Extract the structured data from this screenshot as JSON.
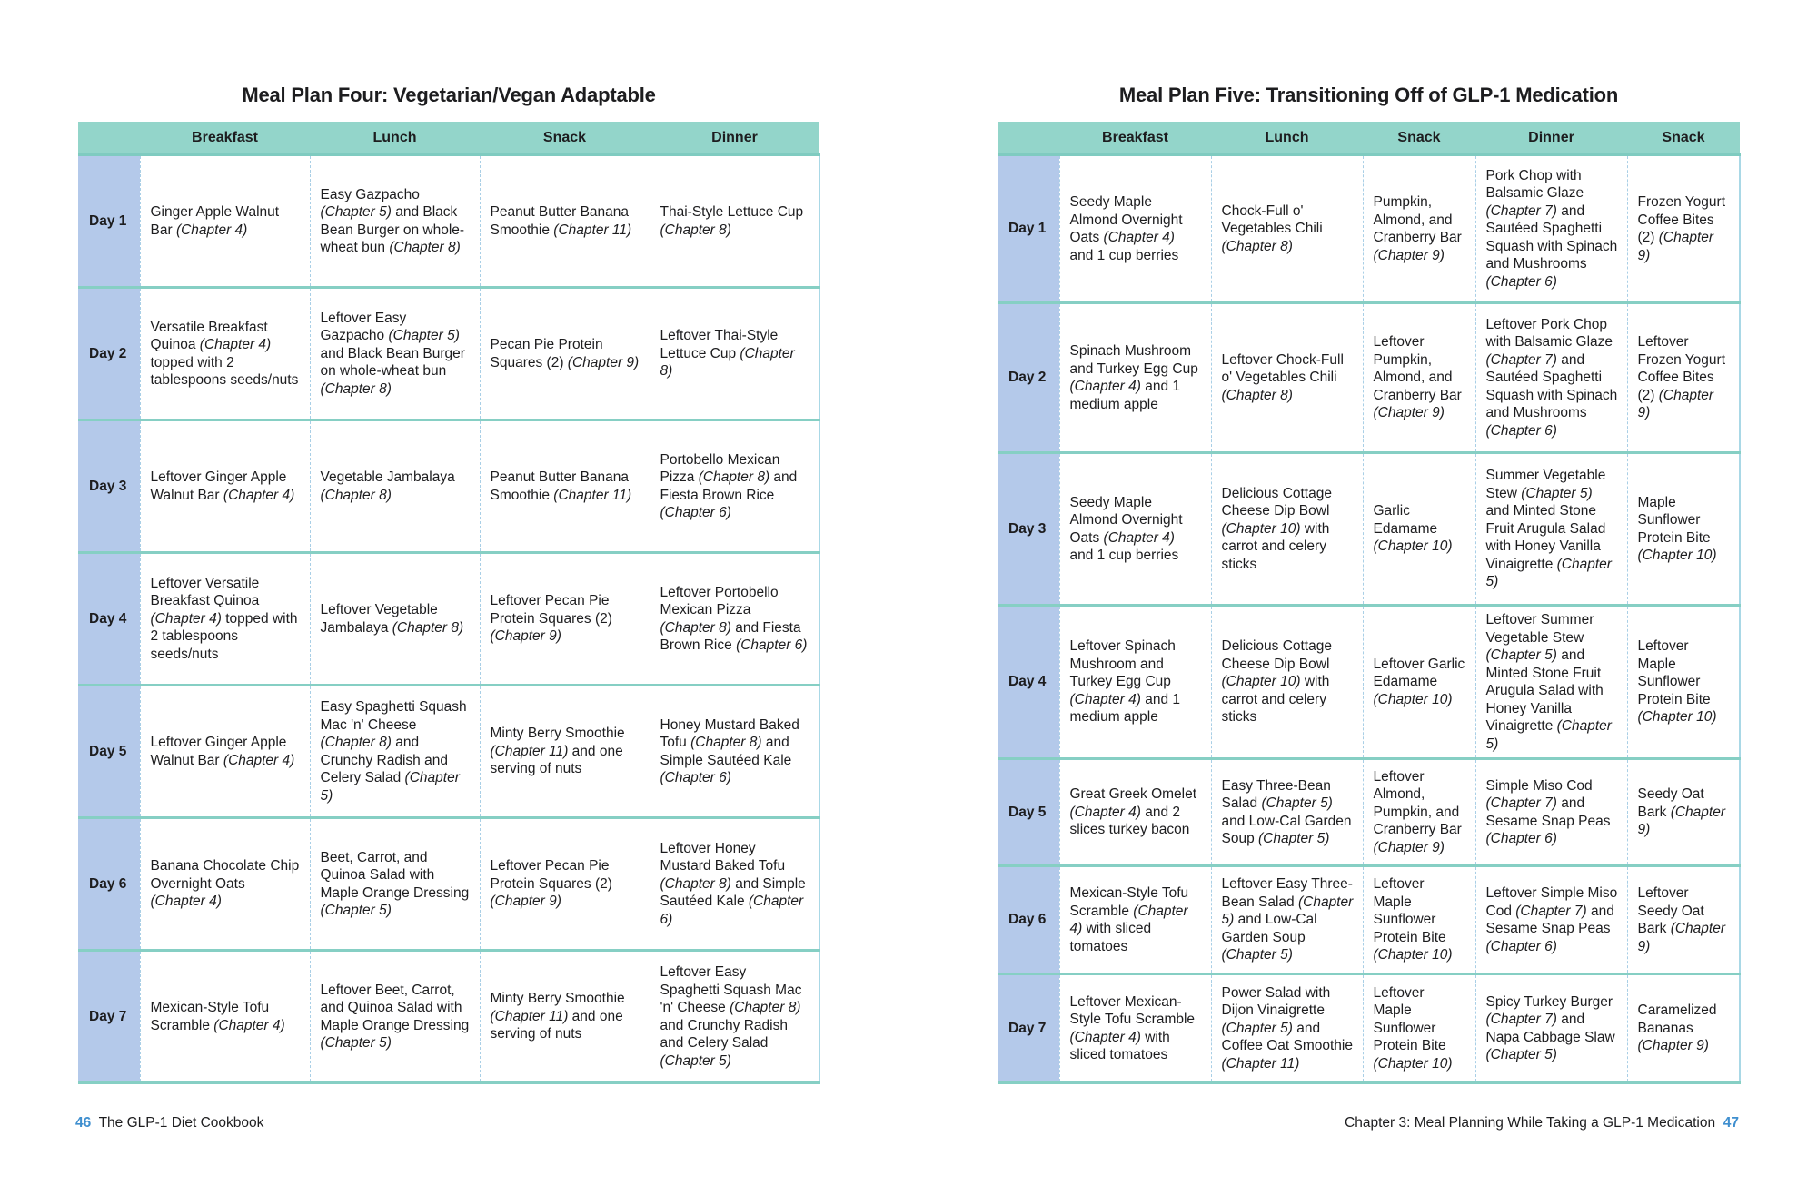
{
  "left": {
    "title": "Meal Plan Four: Vegetarian/Vegan Adaptable",
    "headers": [
      "",
      "Breakfast",
      "Lunch",
      "Snack",
      "Dinner"
    ],
    "rows": [
      {
        "day": "Day 1",
        "cells": [
          "Ginger Apple Walnut Bar (Chapter 4)",
          "Easy Gazpacho (Chapter 5) and Black Bean Burger on whole-wheat bun (Chapter 8)",
          "Peanut Butter Banana Smoothie (Chapter 11)",
          "Thai-Style Lettuce Cup (Chapter 8)"
        ]
      },
      {
        "day": "Day 2",
        "cells": [
          "Versatile Breakfast Quinoa (Chapter 4) topped with 2 tablespoons seeds/nuts",
          "Leftover Easy Gazpacho (Chapter 5) and Black Bean Burger on whole-wheat bun (Chapter 8)",
          "Pecan Pie Protein Squares (2) (Chapter 9)",
          "Leftover Thai-Style Lettuce Cup (Chapter 8)"
        ]
      },
      {
        "day": "Day 3",
        "cells": [
          "Leftover Ginger Apple Walnut Bar (Chapter 4)",
          "Vegetable Jambalaya (Chapter 8)",
          "Peanut Butter Banana Smoothie (Chapter 11)",
          "Portobello Mexican Pizza (Chapter 8) and Fiesta Brown Rice (Chapter 6)"
        ]
      },
      {
        "day": "Day 4",
        "cells": [
          "Leftover Versatile Breakfast Quinoa (Chapter 4) topped with 2 tablespoons seeds/nuts",
          "Leftover Vegetable Jambalaya (Chapter 8)",
          "Leftover Pecan Pie Protein Squares (2) (Chapter 9)",
          "Leftover Portobello Mexican Pizza (Chapter 8) and Fiesta Brown Rice (Chapter 6)"
        ]
      },
      {
        "day": "Day 5",
        "cells": [
          "Leftover Ginger Apple Walnut Bar (Chapter 4)",
          "Easy Spaghetti Squash Mac 'n' Cheese (Chapter 8) and Crunchy Radish and Celery Salad (Chapter 5)",
          "Minty Berry Smoothie (Chapter 11) and one serving of nuts",
          "Honey Mustard Baked Tofu (Chapter 8) and Simple Sautéed Kale (Chapter 6)"
        ]
      },
      {
        "day": "Day 6",
        "cells": [
          "Banana Chocolate Chip Overnight Oats (Chapter 4)",
          "Beet, Carrot, and Quinoa Salad with Maple Orange Dressing (Chapter 5)",
          "Leftover Pecan Pie Protein Squares (2) (Chapter 9)",
          "Leftover Honey Mustard Baked Tofu (Chapter 8) and Simple Sautéed Kale (Chapter 6)"
        ]
      },
      {
        "day": "Day 7",
        "cells": [
          "Mexican-Style Tofu Scramble (Chapter 4)",
          "Leftover Beet, Carrot, and Quinoa Salad with Maple Orange Dressing (Chapter 5)",
          "Minty Berry Smoothie (Chapter 11) and one serving of nuts",
          "Leftover Easy Spaghetti Squash Mac 'n' Cheese (Chapter 8) and Crunchy Radish and Celery Salad (Chapter 5)"
        ]
      }
    ]
  },
  "right": {
    "title": "Meal Plan Five: Transitioning Off of GLP-1 Medication",
    "headers": [
      "",
      "Breakfast",
      "Lunch",
      "Snack",
      "Dinner",
      "Snack"
    ],
    "rows": [
      {
        "day": "Day 1",
        "cells": [
          "Seedy Maple Almond Overnight Oats (Chapter 4) and 1 cup berries",
          "Chock-Full o' Vegetables Chili (Chapter 8)",
          "Pumpkin, Almond, and Cranberry Bar (Chapter 9)",
          "Pork Chop with Balsamic Glaze (Chapter 7) and Sautéed Spaghetti Squash with Spinach and Mushrooms (Chapter 6)",
          "Frozen Yogurt Coffee Bites (2) (Chapter 9)"
        ]
      },
      {
        "day": "Day 2",
        "cells": [
          "Spinach Mushroom and Turkey Egg Cup (Chapter 4) and 1 medium apple",
          "Leftover Chock-Full o' Vegetables Chili (Chapter 8)",
          "Leftover Pumpkin, Almond, and Cranberry Bar (Chapter 9)",
          "Leftover Pork Chop with Balsamic Glaze (Chapter 7) and Sautéed Spaghetti Squash with Spinach and Mushrooms (Chapter 6)",
          "Leftover Frozen Yogurt Coffee Bites (2) (Chapter 9)"
        ]
      },
      {
        "day": "Day 3",
        "cells": [
          "Seedy Maple Almond Overnight Oats (Chapter 4) and 1 cup berries",
          "Delicious Cottage Cheese Dip Bowl (Chapter 10) with carrot and celery sticks",
          "Garlic Edamame (Chapter 10)",
          "Summer Vegetable Stew (Chapter 5) and Minted Stone Fruit Arugula Salad with Honey Vanilla Vinaigrette (Chapter 5)",
          "Maple Sunflower Protein Bite (Chapter 10)"
        ]
      },
      {
        "day": "Day 4",
        "cells": [
          "Leftover Spinach Mushroom and Turkey Egg Cup (Chapter 4) and 1 medium apple",
          "Delicious Cottage Cheese Dip Bowl (Chapter 10) with carrot and celery sticks",
          "Leftover Garlic Edamame (Chapter 10)",
          "Leftover Summer Vegetable Stew (Chapter 5) and Minted Stone Fruit Arugula Salad with Honey Vanilla Vinaigrette (Chapter 5)",
          "Leftover Maple Sunflower Protein Bite (Chapter 10)"
        ]
      },
      {
        "day": "Day 5",
        "cells": [
          "Great Greek Omelet (Chapter 4) and 2 slices turkey bacon",
          "Easy Three-Bean Salad (Chapter 5) and Low-Cal Garden Soup (Chapter 5)",
          "Leftover Almond, Pumpkin, and Cranberry Bar (Chapter 9)",
          "Simple Miso Cod (Chapter 7) and Sesame Snap Peas (Chapter 6)",
          "Seedy Oat Bark (Chapter 9)"
        ]
      },
      {
        "day": "Day 6",
        "cells": [
          "Mexican-Style Tofu Scramble (Chapter 4) with sliced tomatoes",
          "Leftover Easy Three-Bean Salad (Chapter 5) and Low-Cal Garden Soup (Chapter 5)",
          "Leftover Maple Sunflower Protein Bite (Chapter 10)",
          "Leftover Simple Miso Cod (Chapter 7) and Sesame Snap Peas (Chapter 6)",
          "Leftover Seedy Oat Bark (Chapter 9)"
        ]
      },
      {
        "day": "Day 7",
        "cells": [
          "Leftover Mexican-Style Tofu Scramble (Chapter 4) with sliced tomatoes",
          "Power Salad with Dijon Vinaigrette (Chapter 5) and Coffee Oat Smoothie (Chapter 11)",
          "Leftover Maple Sunflower Protein Bite (Chapter 10)",
          "Spicy Turkey Burger (Chapter 7) and Napa Cabbage Slaw (Chapter 5)",
          "Caramelized Bananas (Chapter 9)"
        ]
      }
    ]
  },
  "footer": {
    "left_page": "46",
    "left_text": "The GLP-1 Diet Cookbook",
    "right_text": "Chapter 3: Meal Planning While Taking a GLP-1 Medication",
    "right_page": "47"
  },
  "colors": {
    "header": "#93d5ca",
    "day_column": "#b4c9ea",
    "page_number": "#3f8fcf"
  }
}
